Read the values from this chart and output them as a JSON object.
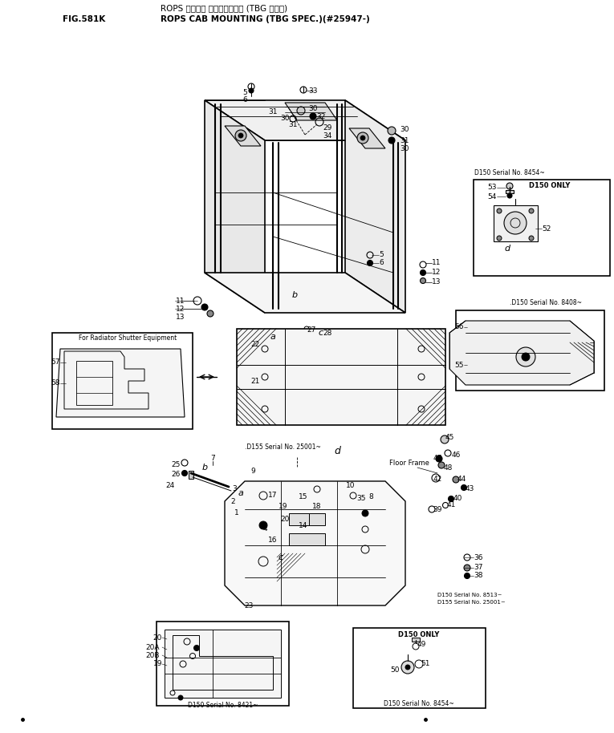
{
  "title_jp": "ROPS キャブ・ マウンティング (TBG ショウ)",
  "title_en": "ROPS CAB MOUNTING (TBG SPEC.)(#25947-)",
  "fig_label": "FIG.581K",
  "bg_color": "#ffffff",
  "lc": "#000000",
  "tc": "#000000",
  "figsize": [
    7.65,
    9.14
  ],
  "dpi": 100
}
